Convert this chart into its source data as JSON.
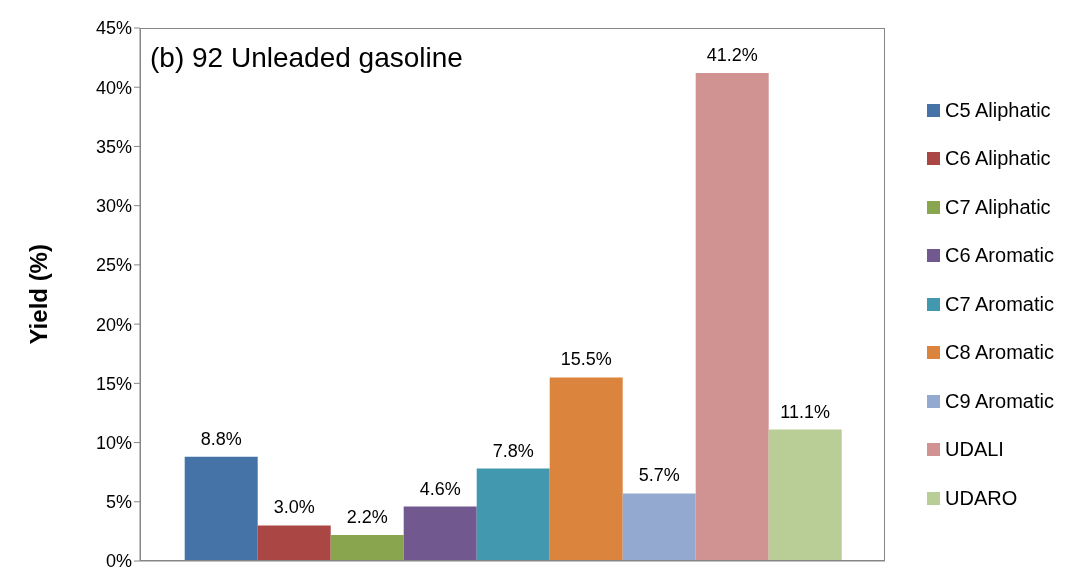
{
  "chart_data": {
    "type": "bar",
    "title": "(b) 92 Unleaded gasoline",
    "ylabel": "Yield (%)",
    "categories": [
      null
    ],
    "series": [
      {
        "name": "C5 Aliphatic",
        "color": "#4572a7",
        "values": [
          8.8
        ],
        "value_labels": [
          "8.8%"
        ]
      },
      {
        "name": "C6 Aliphatic",
        "color": "#aa4643",
        "values": [
          3.0
        ],
        "value_labels": [
          "3.0%"
        ]
      },
      {
        "name": "C7 Aliphatic",
        "color": "#89a54e",
        "values": [
          2.2
        ],
        "value_labels": [
          "2.2%"
        ]
      },
      {
        "name": "C6 Aromatic",
        "color": "#71588f",
        "values": [
          4.6
        ],
        "value_labels": [
          "4.6%"
        ]
      },
      {
        "name": "C7 Aromatic",
        "color": "#4198af",
        "values": [
          7.8
        ],
        "value_labels": [
          "7.8%"
        ]
      },
      {
        "name": "C8 Aromatic",
        "color": "#db843d",
        "values": [
          15.5
        ],
        "value_labels": [
          "15.5%"
        ]
      },
      {
        "name": "C9 Aromatic",
        "color": "#93a9cf",
        "values": [
          5.7
        ],
        "value_labels": [
          "5.7%"
        ]
      },
      {
        "name": "UDALI",
        "color": "#d19392",
        "values": [
          41.2
        ],
        "value_labels": [
          "41.2%"
        ]
      },
      {
        "name": "UDARO",
        "color": "#b9cd96",
        "values": [
          11.1
        ],
        "value_labels": [
          "11.1%"
        ]
      }
    ],
    "ylim": [
      0,
      45
    ],
    "yticks": [
      {
        "value": 0,
        "label": "0%"
      },
      {
        "value": 5,
        "label": "5%"
      },
      {
        "value": 10,
        "label": "10%"
      },
      {
        "value": 15,
        "label": "15%"
      },
      {
        "value": 20,
        "label": "20%"
      },
      {
        "value": 25,
        "label": "25%"
      },
      {
        "value": 30,
        "label": "30%"
      },
      {
        "value": 35,
        "label": "35%"
      },
      {
        "value": 40,
        "label": "40%"
      },
      {
        "value": 45,
        "label": "45%"
      }
    ],
    "grid": false,
    "legend": "right"
  }
}
